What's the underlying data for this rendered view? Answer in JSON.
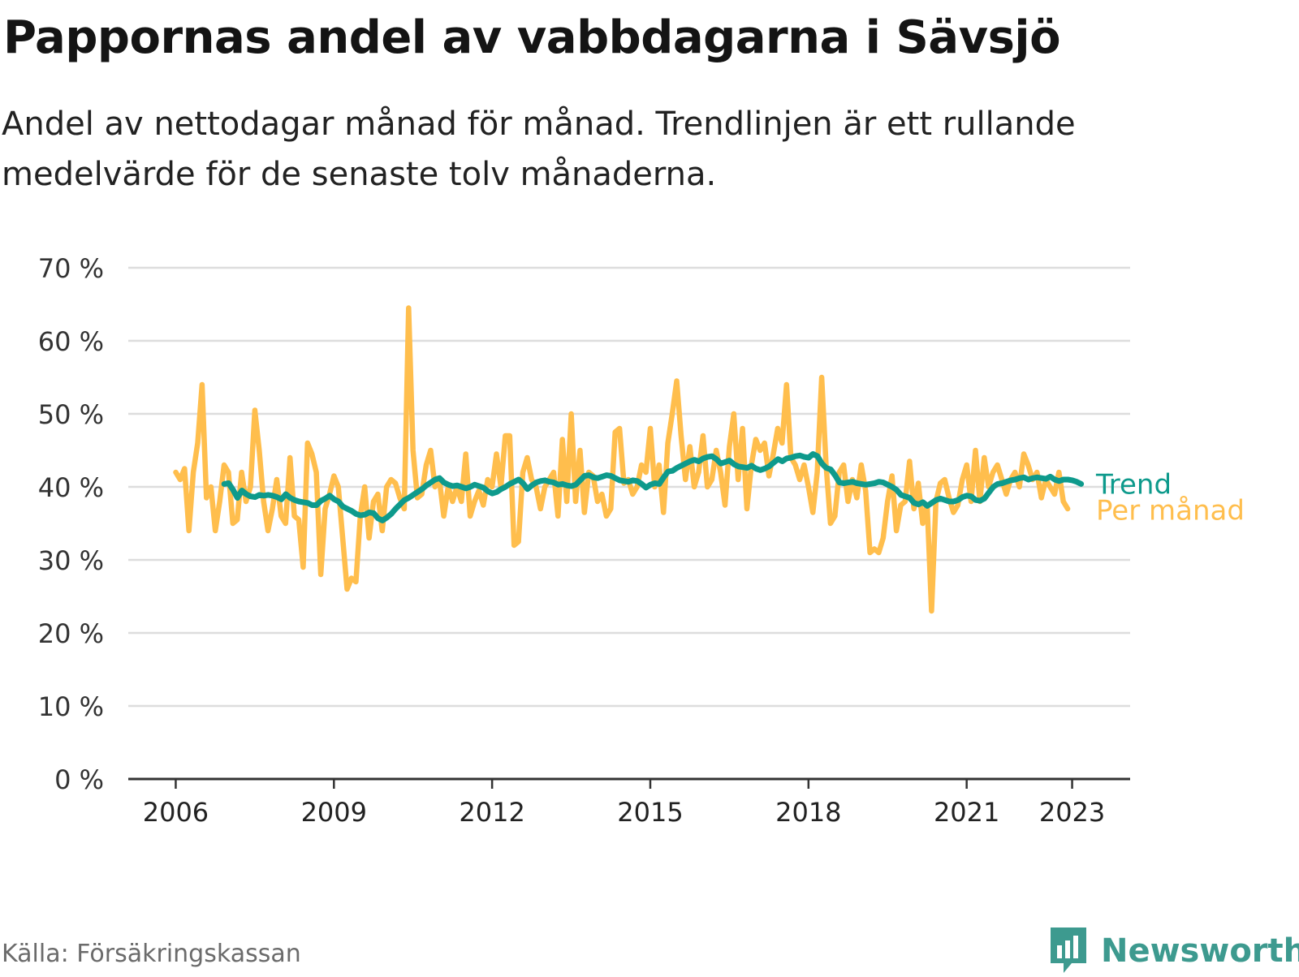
{
  "title": "Pappornas andel av vabbdagarna i Sävsjö",
  "subtitle": "Andel av nettodagar månad för månad. Trendlinjen är ett rullande medelvärde för de senaste tolv månaderna.",
  "source": "Källa: Försäkringskassan",
  "brand": "Newsworthy",
  "colors": {
    "monthly": "#ffbe4d",
    "trend": "#0e9a8c",
    "grid": "#dddddd",
    "axis": "#333333",
    "brand": "#3d9a8f"
  },
  "chart_data": {
    "type": "line",
    "x_tick_labels": [
      "2006",
      "2009",
      "2012",
      "2015",
      "2018",
      "2021",
      "2023"
    ],
    "x_ticks": [
      2006,
      2009,
      2012,
      2015,
      2018,
      2021,
      2023
    ],
    "y_tick_labels": [
      "0 %",
      "10 %",
      "20 %",
      "30 %",
      "40 %",
      "50 %",
      "60 %",
      "70 %"
    ],
    "y_ticks": [
      0,
      10,
      20,
      30,
      40,
      50,
      60,
      70
    ],
    "xlim": [
      2005.1,
      2024.1
    ],
    "ylim": [
      0,
      70
    ],
    "grid": true,
    "legend": "end-labels",
    "series": [
      {
        "name": "Trend",
        "x_start": 2006.92,
        "values": [
          40.4,
          40.5,
          39.6,
          38.5,
          39.5,
          39.0,
          38.7,
          38.6,
          38.9,
          38.8,
          38.9,
          38.8,
          38.6,
          38.3,
          39.0,
          38.5,
          38.2,
          38.0,
          37.9,
          37.8,
          37.5,
          37.5,
          38.1,
          38.4,
          38.8,
          38.3,
          38.0,
          37.3,
          37.0,
          36.7,
          36.3,
          36.1,
          36.2,
          36.5,
          36.4,
          35.7,
          35.4,
          35.8,
          36.3,
          37.0,
          37.6,
          38.2,
          38.5,
          38.9,
          39.3,
          39.7,
          40.2,
          40.6,
          41.0,
          41.2,
          40.6,
          40.3,
          40.1,
          40.2,
          40.0,
          39.8,
          40.0,
          40.3,
          40.1,
          39.9,
          39.4,
          39.1,
          39.3,
          39.7,
          40.0,
          40.4,
          40.7,
          41.0,
          40.5,
          39.7,
          40.2,
          40.6,
          40.8,
          40.9,
          40.7,
          40.6,
          40.3,
          40.4,
          40.2,
          40.1,
          40.3,
          40.9,
          41.5,
          41.6,
          41.3,
          41.2,
          41.4,
          41.6,
          41.5,
          41.2,
          40.9,
          40.8,
          40.7,
          40.9,
          40.8,
          40.4,
          39.9,
          40.3,
          40.5,
          40.4,
          41.3,
          42.1,
          42.2,
          42.6,
          42.9,
          43.2,
          43.5,
          43.7,
          43.5,
          43.9,
          44.1,
          44.2,
          43.8,
          43.2,
          43.4,
          43.6,
          43.1,
          42.8,
          42.7,
          42.6,
          42.9,
          42.5,
          42.3,
          42.5,
          42.8,
          43.3,
          43.8,
          43.5,
          43.9,
          44.0,
          44.2,
          44.3,
          44.1,
          44.0,
          44.5,
          44.2,
          43.2,
          42.6,
          42.4,
          41.6,
          40.6,
          40.5,
          40.6,
          40.7,
          40.5,
          40.4,
          40.3,
          40.4,
          40.5,
          40.7,
          40.6,
          40.3,
          40.0,
          39.6,
          38.9,
          38.7,
          38.5,
          37.8,
          37.6,
          37.9,
          37.4,
          37.8,
          38.2,
          38.4,
          38.2,
          38.0,
          38.0,
          38.2,
          38.6,
          38.8,
          38.7,
          38.2,
          38.1,
          38.4,
          39.2,
          40.0,
          40.4,
          40.5,
          40.7,
          40.9,
          41.0,
          41.2,
          41.3,
          41.0,
          41.2,
          41.3,
          41.2,
          41.1,
          41.4,
          41.0,
          40.8,
          41.0,
          41.0,
          40.9,
          40.7,
          40.4
        ]
      },
      {
        "name": "Per månad",
        "x_start": 2006.0,
        "values": [
          42.0,
          41.0,
          42.5,
          34.0,
          42.0,
          46.0,
          54.0,
          38.5,
          40.0,
          34.0,
          38.0,
          43.0,
          42.0,
          35.0,
          35.5,
          42.0,
          38.0,
          40.0,
          50.5,
          45.0,
          38.0,
          34.0,
          37.0,
          41.0,
          36.0,
          35.0,
          44.0,
          36.0,
          35.5,
          29.0,
          46.0,
          44.5,
          42.0,
          28.0,
          37.0,
          39.0,
          41.5,
          40.0,
          33.0,
          26.0,
          27.5,
          27.0,
          36.0,
          40.0,
          33.0,
          38.0,
          39.0,
          34.0,
          40.0,
          41.0,
          40.5,
          38.5,
          37.0,
          64.5,
          45.0,
          38.5,
          39.0,
          43.0,
          45.0,
          40.0,
          41.0,
          36.0,
          40.0,
          38.0,
          40.0,
          38.0,
          44.5,
          36.0,
          38.0,
          39.5,
          37.5,
          41.0,
          40.0,
          44.5,
          40.0,
          47.0,
          47.0,
          32.0,
          32.5,
          42.0,
          44.0,
          41.0,
          40.0,
          37.0,
          40.0,
          41.0,
          42.0,
          36.0,
          46.5,
          38.0,
          50.0,
          38.0,
          45.0,
          36.5,
          42.0,
          41.5,
          38.0,
          39.0,
          36.0,
          37.0,
          47.5,
          48.0,
          40.5,
          41.0,
          39.0,
          40.0,
          43.0,
          42.0,
          48.0,
          40.0,
          43.0,
          36.5,
          46.0,
          50.0,
          54.5,
          47.0,
          41.0,
          45.5,
          40.0,
          42.0,
          47.0,
          40.0,
          41.0,
          45.0,
          42.0,
          37.5,
          45.5,
          50.0,
          41.0,
          48.0,
          37.0,
          43.0,
          46.5,
          45.0,
          46.0,
          41.5,
          44.5,
          48.0,
          46.0,
          54.0,
          44.0,
          43.0,
          41.0,
          43.0,
          40.0,
          36.5,
          42.0,
          55.0,
          43.0,
          35.0,
          36.0,
          42.0,
          43.0,
          38.0,
          41.0,
          38.5,
          43.0,
          39.5,
          31.0,
          31.5,
          31.0,
          33.0,
          38.0,
          41.5,
          34.0,
          37.5,
          38.0,
          43.5,
          37.0,
          40.5,
          35.0,
          37.5,
          23.0,
          38.0,
          40.5,
          41.0,
          38.5,
          36.5,
          37.5,
          41.0,
          43.0,
          38.0,
          45.0,
          38.0,
          44.0,
          40.0,
          42.0,
          43.0,
          41.0,
          39.0,
          41.0,
          42.0,
          40.0,
          44.5,
          43.0,
          41.0,
          42.0,
          38.5,
          41.0,
          40.0,
          39.0,
          42.0,
          38.0,
          37.0
        ]
      }
    ]
  }
}
